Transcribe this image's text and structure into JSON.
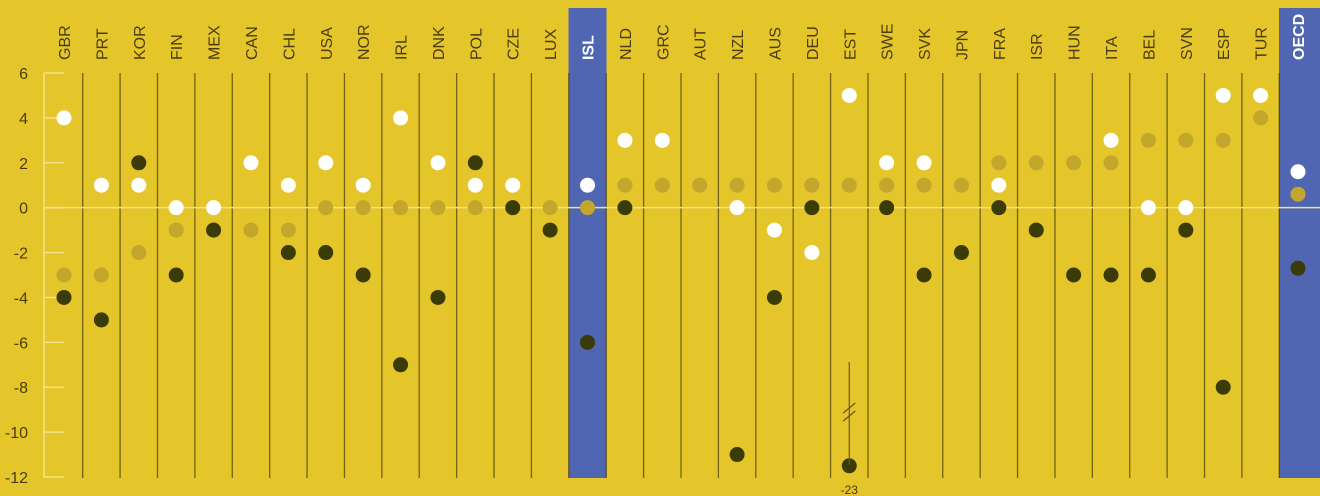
{
  "chart_data": {
    "type": "scatter",
    "categories": [
      "GBR",
      "PRT",
      "KOR",
      "FIN",
      "MEX",
      "CAN",
      "CHL",
      "USA",
      "NOR",
      "IRL",
      "DNK",
      "POL",
      "CZE",
      "LUX",
      "ISL",
      "NLD",
      "GRC",
      "AUT",
      "NZL",
      "AUS",
      "DEU",
      "EST",
      "SWE",
      "SVK",
      "JPN",
      "FRA",
      "ISR",
      "HUN",
      "ITA",
      "BEL",
      "SVN",
      "ESP",
      "TUR",
      "OECD"
    ],
    "highlight": [
      "ISL",
      "OECD"
    ],
    "ylim": [
      -12,
      6
    ],
    "yticks": [
      6,
      4,
      2,
      0,
      -2,
      -4,
      -6,
      -8,
      -10,
      -12
    ],
    "ytick_labels": [
      "6",
      "4",
      "2",
      "0",
      "-2",
      "-4",
      "-6",
      "-8",
      "-10",
      "-12"
    ],
    "grid": false,
    "series": [
      {
        "key": "white",
        "values": [
          4,
          1,
          1,
          0,
          0,
          2,
          1,
          2,
          1,
          4,
          2,
          1,
          1,
          null,
          1,
          3,
          3,
          null,
          0,
          -1,
          -2,
          5,
          2,
          2,
          null,
          1,
          null,
          null,
          3,
          0,
          0,
          5,
          5,
          1.6
        ]
      },
      {
        "key": "light",
        "values": [
          -3,
          -3,
          -2,
          -1,
          -1,
          -1,
          -1,
          0,
          0,
          0,
          0,
          0,
          0,
          0,
          0,
          1,
          1,
          1,
          1,
          1,
          1,
          1,
          1,
          1,
          1,
          2,
          2,
          2,
          2,
          3,
          3,
          3,
          4,
          0.6
        ]
      },
      {
        "key": "dark",
        "values": [
          -4,
          -5,
          2,
          -3,
          -1,
          null,
          -2,
          -2,
          -3,
          -7,
          -4,
          2,
          0,
          -1,
          -6,
          0,
          null,
          null,
          -11,
          -4,
          0,
          -11.5,
          0,
          -3,
          -2,
          0,
          -1,
          -3,
          -3,
          -3,
          -1,
          -8,
          null,
          -2.7
        ]
      }
    ],
    "annotations": [
      {
        "category": "EST",
        "text": "-23",
        "y": -12
      }
    ],
    "colors": {
      "background": "#e4c52a",
      "highlight": "#5066b3",
      "white": "#ffffff",
      "light": "#c3a62c",
      "dark": "#3b3b08",
      "grid": "#f3e28a",
      "separator": "#4e430c",
      "text": "#4a3c10"
    }
  }
}
